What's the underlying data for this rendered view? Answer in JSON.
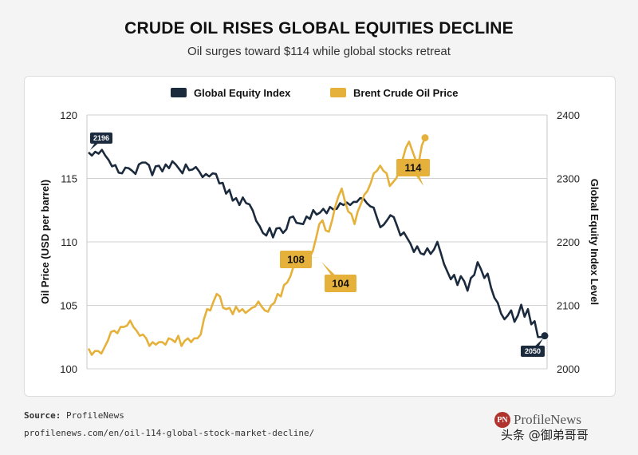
{
  "title": "CRUDE OIL RISES GLOBAL EQUITIES DECLINE",
  "subtitle": "Oil surges toward $114 while global stocks retreat",
  "source_label": "Source:",
  "source_value": "ProfileNews",
  "url": "profilenews.com/en/oil-114-global-stock-market-decline/",
  "logo": {
    "mark": "PN",
    "text": "ProfileNews"
  },
  "watermark": "头条 @御弟哥哥",
  "colors": {
    "equity": "#1b2a3d",
    "oil": "#e5b13a",
    "grid": "#d0d0d0"
  },
  "chart_data": {
    "type": "line",
    "legend": {
      "placement": "top-center"
    },
    "grid": true,
    "ylabel_left": "Oil Price (USD per barrel)",
    "ylabel_right": "Global Equity Index Level",
    "ylim_left": [
      100,
      120
    ],
    "ylim_right": [
      2000,
      2400
    ],
    "yticks_left": [
      "100",
      "105",
      "110",
      "115",
      "120"
    ],
    "yticks_right": [
      "2000",
      "2100",
      "2200",
      "2300",
      "2400"
    ],
    "series": [
      {
        "name": "Global Equity Index",
        "axis": "right",
        "values": [
          2341,
          2336,
          2342,
          2339,
          2345,
          2336,
          2329,
          2319,
          2321,
          2309,
          2308,
          2317,
          2316,
          2312,
          2307,
          2322,
          2325,
          2325,
          2321,
          2305,
          2319,
          2320,
          2311,
          2322,
          2316,
          2327,
          2322,
          2315,
          2308,
          2322,
          2313,
          2314,
          2318,
          2311,
          2302,
          2307,
          2303,
          2308,
          2307,
          2292,
          2293,
          2276,
          2282,
          2265,
          2269,
          2258,
          2270,
          2261,
          2259,
          2249,
          2233,
          2225,
          2214,
          2210,
          2222,
          2207,
          2221,
          2222,
          2214,
          2220,
          2238,
          2240,
          2230,
          2229,
          2228,
          2240,
          2236,
          2250,
          2243,
          2246,
          2252,
          2245,
          2255,
          2251,
          2252,
          2261,
          2258,
          2262,
          2258,
          2263,
          2263,
          2269,
          2268,
          2261,
          2256,
          2254,
          2238,
          2223,
          2227,
          2234,
          2242,
          2239,
          2225,
          2210,
          2215,
          2206,
          2197,
          2184,
          2193,
          2182,
          2180,
          2190,
          2181,
          2188,
          2200,
          2183,
          2165,
          2153,
          2141,
          2148,
          2132,
          2146,
          2138,
          2123,
          2143,
          2148,
          2168,
          2157,
          2143,
          2150,
          2128,
          2112,
          2104,
          2087,
          2078,
          2084,
          2092,
          2074,
          2084,
          2101,
          2082,
          2094,
          2070,
          2075,
          2050,
          2050,
          2052
        ]
      },
      {
        "name": "Brent Crude Oil Price",
        "axis": "left",
        "values": [
          101.6,
          101.1,
          101.4,
          101.4,
          101.2,
          101.7,
          102.2,
          102.9,
          103.0,
          102.8,
          103.3,
          103.3,
          103.4,
          103.8,
          103.3,
          103.0,
          102.6,
          102.7,
          102.4,
          101.8,
          102.1,
          101.9,
          102.1,
          102.1,
          101.9,
          102.4,
          102.3,
          102.1,
          102.6,
          101.8,
          102.2,
          102.4,
          102.1,
          102.4,
          102.4,
          102.7,
          103.9,
          104.7,
          104.6,
          105.3,
          105.9,
          105.7,
          104.8,
          104.7,
          104.8,
          104.3,
          104.9,
          104.5,
          104.7,
          104.4,
          104.6,
          104.8,
          104.9,
          105.3,
          104.9,
          104.6,
          104.5,
          105.0,
          105.2,
          105.9,
          105.7,
          106.6,
          106.8,
          107.3,
          108.1,
          108.5,
          108.5,
          108.8,
          108.5,
          108.8,
          109.3,
          110.3,
          111.4,
          111.7,
          110.9,
          110.8,
          111.7,
          112.8,
          113.6,
          114.2,
          113.2,
          112.4,
          112.2,
          111.4,
          112.4,
          113.0,
          113.7,
          114.0,
          114.6,
          115.4,
          115.6,
          116.0,
          115.6,
          115.4,
          114.4,
          114.7,
          115.0,
          115.6,
          116.5,
          117.4,
          117.9,
          117.2,
          116.5,
          116.2,
          117.6,
          118.2
        ],
        "values_x_offset": 0,
        "values_count_note": "",
        "dummy": ""
      }
    ],
    "annotations": [
      {
        "series": "Global Equity Index",
        "label": "2196"
      },
      {
        "series": "Global Equity Index",
        "label": "2050"
      },
      {
        "series": "Brent Crude Oil Price",
        "label": "108"
      },
      {
        "series": "Brent Crude Oil Price",
        "label": "104"
      },
      {
        "series": "Brent Crude Oil Price",
        "label": "114"
      }
    ]
  }
}
